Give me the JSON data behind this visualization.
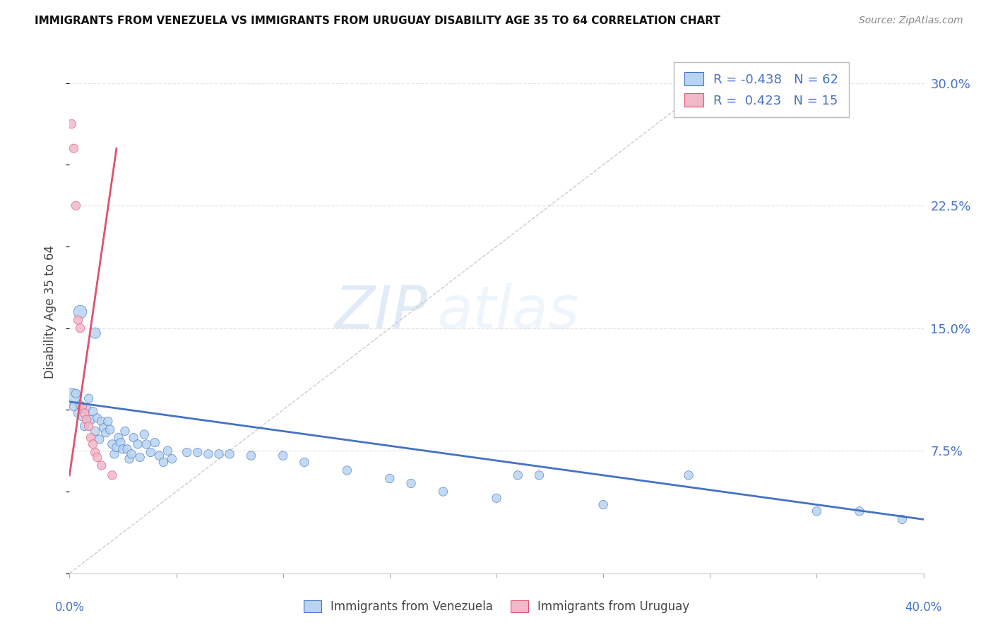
{
  "title": "IMMIGRANTS FROM VENEZUELA VS IMMIGRANTS FROM URUGUAY DISABILITY AGE 35 TO 64 CORRELATION CHART",
  "source": "Source: ZipAtlas.com",
  "ylabel": "Disability Age 35 to 64",
  "ytick_values": [
    0.0,
    0.075,
    0.15,
    0.225,
    0.3
  ],
  "xlim": [
    0.0,
    0.4
  ],
  "ylim": [
    0.0,
    0.32
  ],
  "r_venezuela": -0.438,
  "n_venezuela": 62,
  "r_uruguay": 0.423,
  "n_uruguay": 15,
  "color_venezuela": "#b8d4f0",
  "color_uruguay": "#f0b8c8",
  "color_venezuela_line": "#4472c4",
  "color_uruguay_line": "#e05070",
  "color_axis_labels": "#4472c4",
  "watermark_zip": "ZIP",
  "watermark_atlas": "atlas",
  "venezuela_points": [
    [
      0.001,
      0.108
    ],
    [
      0.002,
      0.102
    ],
    [
      0.003,
      0.11
    ],
    [
      0.004,
      0.098
    ],
    [
      0.005,
      0.103
    ],
    [
      0.006,
      0.096
    ],
    [
      0.007,
      0.09
    ],
    [
      0.008,
      0.101
    ],
    [
      0.009,
      0.107
    ],
    [
      0.01,
      0.094
    ],
    [
      0.011,
      0.099
    ],
    [
      0.012,
      0.087
    ],
    [
      0.013,
      0.095
    ],
    [
      0.014,
      0.082
    ],
    [
      0.015,
      0.093
    ],
    [
      0.016,
      0.089
    ],
    [
      0.017,
      0.086
    ],
    [
      0.018,
      0.093
    ],
    [
      0.019,
      0.088
    ],
    [
      0.02,
      0.079
    ],
    [
      0.021,
      0.073
    ],
    [
      0.022,
      0.077
    ],
    [
      0.023,
      0.083
    ],
    [
      0.024,
      0.08
    ],
    [
      0.025,
      0.076
    ],
    [
      0.026,
      0.087
    ],
    [
      0.027,
      0.076
    ],
    [
      0.028,
      0.07
    ],
    [
      0.029,
      0.073
    ],
    [
      0.03,
      0.083
    ],
    [
      0.032,
      0.079
    ],
    [
      0.033,
      0.071
    ],
    [
      0.035,
      0.085
    ],
    [
      0.036,
      0.079
    ],
    [
      0.038,
      0.074
    ],
    [
      0.04,
      0.08
    ],
    [
      0.042,
      0.072
    ],
    [
      0.044,
      0.068
    ],
    [
      0.046,
      0.075
    ],
    [
      0.048,
      0.07
    ],
    [
      0.055,
      0.074
    ],
    [
      0.06,
      0.074
    ],
    [
      0.065,
      0.073
    ],
    [
      0.07,
      0.073
    ],
    [
      0.075,
      0.073
    ],
    [
      0.085,
      0.072
    ],
    [
      0.1,
      0.072
    ],
    [
      0.11,
      0.068
    ],
    [
      0.13,
      0.063
    ],
    [
      0.15,
      0.058
    ],
    [
      0.16,
      0.055
    ],
    [
      0.175,
      0.05
    ],
    [
      0.2,
      0.046
    ],
    [
      0.21,
      0.06
    ],
    [
      0.22,
      0.06
    ],
    [
      0.25,
      0.042
    ],
    [
      0.29,
      0.06
    ],
    [
      0.35,
      0.038
    ],
    [
      0.37,
      0.038
    ],
    [
      0.39,
      0.033
    ],
    [
      0.005,
      0.16
    ],
    [
      0.012,
      0.147
    ]
  ],
  "venezuela_sizes": [
    300,
    80,
    80,
    80,
    80,
    80,
    80,
    80,
    80,
    80,
    80,
    80,
    80,
    80,
    80,
    80,
    80,
    80,
    80,
    80,
    80,
    80,
    80,
    80,
    80,
    80,
    80,
    80,
    80,
    80,
    80,
    80,
    80,
    80,
    80,
    80,
    80,
    80,
    80,
    80,
    80,
    80,
    80,
    80,
    80,
    80,
    80,
    80,
    80,
    80,
    80,
    80,
    80,
    80,
    80,
    80,
    80,
    80,
    80,
    80,
    180,
    120
  ],
  "uruguay_points": [
    [
      0.001,
      0.275
    ],
    [
      0.002,
      0.26
    ],
    [
      0.003,
      0.225
    ],
    [
      0.004,
      0.155
    ],
    [
      0.005,
      0.15
    ],
    [
      0.006,
      0.102
    ],
    [
      0.007,
      0.098
    ],
    [
      0.008,
      0.094
    ],
    [
      0.009,
      0.09
    ],
    [
      0.01,
      0.083
    ],
    [
      0.011,
      0.079
    ],
    [
      0.012,
      0.074
    ],
    [
      0.013,
      0.071
    ],
    [
      0.015,
      0.066
    ],
    [
      0.02,
      0.06
    ]
  ],
  "uruguay_sizes": [
    80,
    80,
    80,
    80,
    80,
    80,
    80,
    80,
    80,
    80,
    80,
    80,
    80,
    80,
    80
  ],
  "background_color": "#ffffff",
  "grid_color": "#dddddd"
}
